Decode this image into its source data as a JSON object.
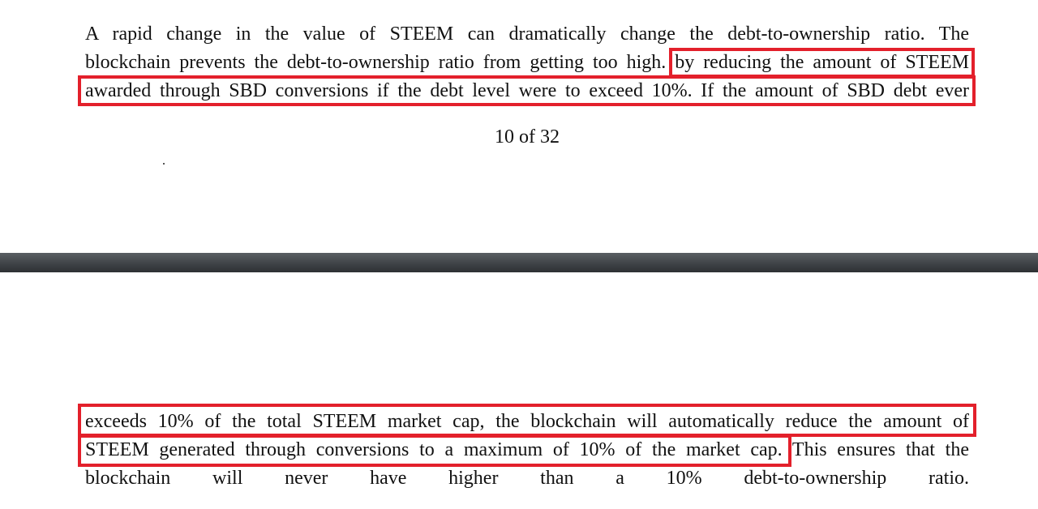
{
  "page_1": {
    "lines": [
      [
        "A rapid change in the value of STEEM can dramatically change the debt-to-ownership ratio. The"
      ],
      [
        "blockchain prevents the debt-to-ownership ratio from getting too high.",
        "by reducing the amount of STEEM"
      ],
      [
        "awarded through SBD conversions if the debt level were to exceed 10%. If the amount of SBD debt ever"
      ]
    ],
    "page_number": "10 of 32"
  },
  "page_2": {
    "lines": [
      [
        "exceeds 10% of the total STEEM market cap, the blockchain will automatically reduce the amount of"
      ],
      [
        "STEEM generated through conversions to a maximum of 10% of the market cap.",
        "This ensures that the"
      ],
      [
        "blockchain will never have higher than a 10% debt-to-ownership ratio."
      ]
    ]
  }
}
